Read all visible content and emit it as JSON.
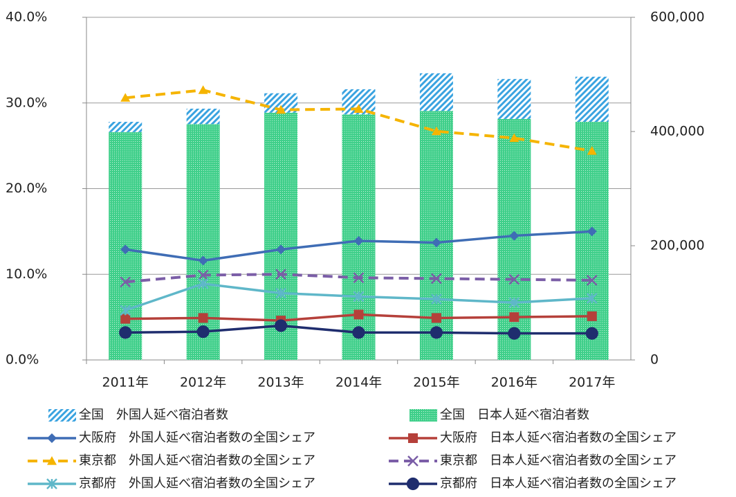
{
  "chart_data": {
    "type": "combo",
    "categories": [
      "2011年",
      "2012年",
      "2013年",
      "2014年",
      "2015年",
      "2016年",
      "2017年"
    ],
    "ylim": [
      0,
      40
    ],
    "yticks": [
      {
        "value": 0,
        "label": "0.0%"
      },
      {
        "value": 10,
        "label": "10.0%"
      },
      {
        "value": 20,
        "label": "20.0%"
      },
      {
        "value": 30,
        "label": "30.0%"
      },
      {
        "value": 40,
        "label": "40.0%"
      }
    ],
    "y2lim": [
      0,
      600000
    ],
    "y2ticks": [
      0,
      {
        "value": 200000,
        "label": "200,000"
      },
      {
        "value": 400000,
        "label": "400,000"
      },
      {
        "value": 600000,
        "label": "600,000"
      }
    ],
    "grid": true,
    "legend": "bottom",
    "series": [
      {
        "name": "全国　外国人延べ宿泊者数",
        "type": "bar",
        "axis": "y2",
        "color": "#3aa3e0",
        "fill": "hatch",
        "values": [
          18000,
          27000,
          34000,
          44000,
          66000,
          70000,
          79000
        ]
      },
      {
        "name": "全国　日本人延べ宿泊者数",
        "type": "bar",
        "axis": "y2",
        "color": "#3fcf8a",
        "fill": "dots",
        "values": [
          399000,
          413000,
          433000,
          430000,
          436000,
          422000,
          417000
        ]
      },
      {
        "name": "大阪府　外国人延べ宿泊者数の全国シェア",
        "type": "line",
        "color": "#3f6db5",
        "marker": "diamond",
        "values": [
          12.9,
          11.6,
          12.9,
          13.9,
          13.7,
          14.5,
          15.0
        ]
      },
      {
        "name": "大阪府　日本人延べ宿泊者数の全国シェア",
        "type": "line",
        "color": "#b5403a",
        "marker": "square",
        "values": [
          4.8,
          4.9,
          4.6,
          5.3,
          4.9,
          5.0,
          5.1
        ]
      },
      {
        "name": "東京都　外国人延べ宿泊者数の全国シェア",
        "type": "line",
        "color": "#f5b400",
        "marker": "triangle",
        "dash": true,
        "values": [
          30.6,
          31.5,
          29.2,
          29.3,
          26.7,
          25.9,
          24.4
        ]
      },
      {
        "name": "東京都　日本人延べ宿泊者数の全国シェア",
        "type": "line",
        "color": "#7b5ea7",
        "marker": "cross",
        "dash": true,
        "values": [
          9.1,
          9.9,
          10.0,
          9.6,
          9.5,
          9.4,
          9.3
        ]
      },
      {
        "name": "京都府　外国人延べ宿泊者数の全国シェア",
        "type": "line",
        "color": "#5fb7c9",
        "marker": "star",
        "values": [
          5.8,
          8.9,
          7.8,
          7.4,
          7.1,
          6.7,
          7.2
        ]
      },
      {
        "name": "京都府　日本人延べ宿泊者数の全国シェア",
        "type": "line",
        "color": "#1f2d6e",
        "marker": "circle",
        "values": [
          3.2,
          3.3,
          4.0,
          3.2,
          3.2,
          3.1,
          3.1
        ]
      }
    ]
  }
}
